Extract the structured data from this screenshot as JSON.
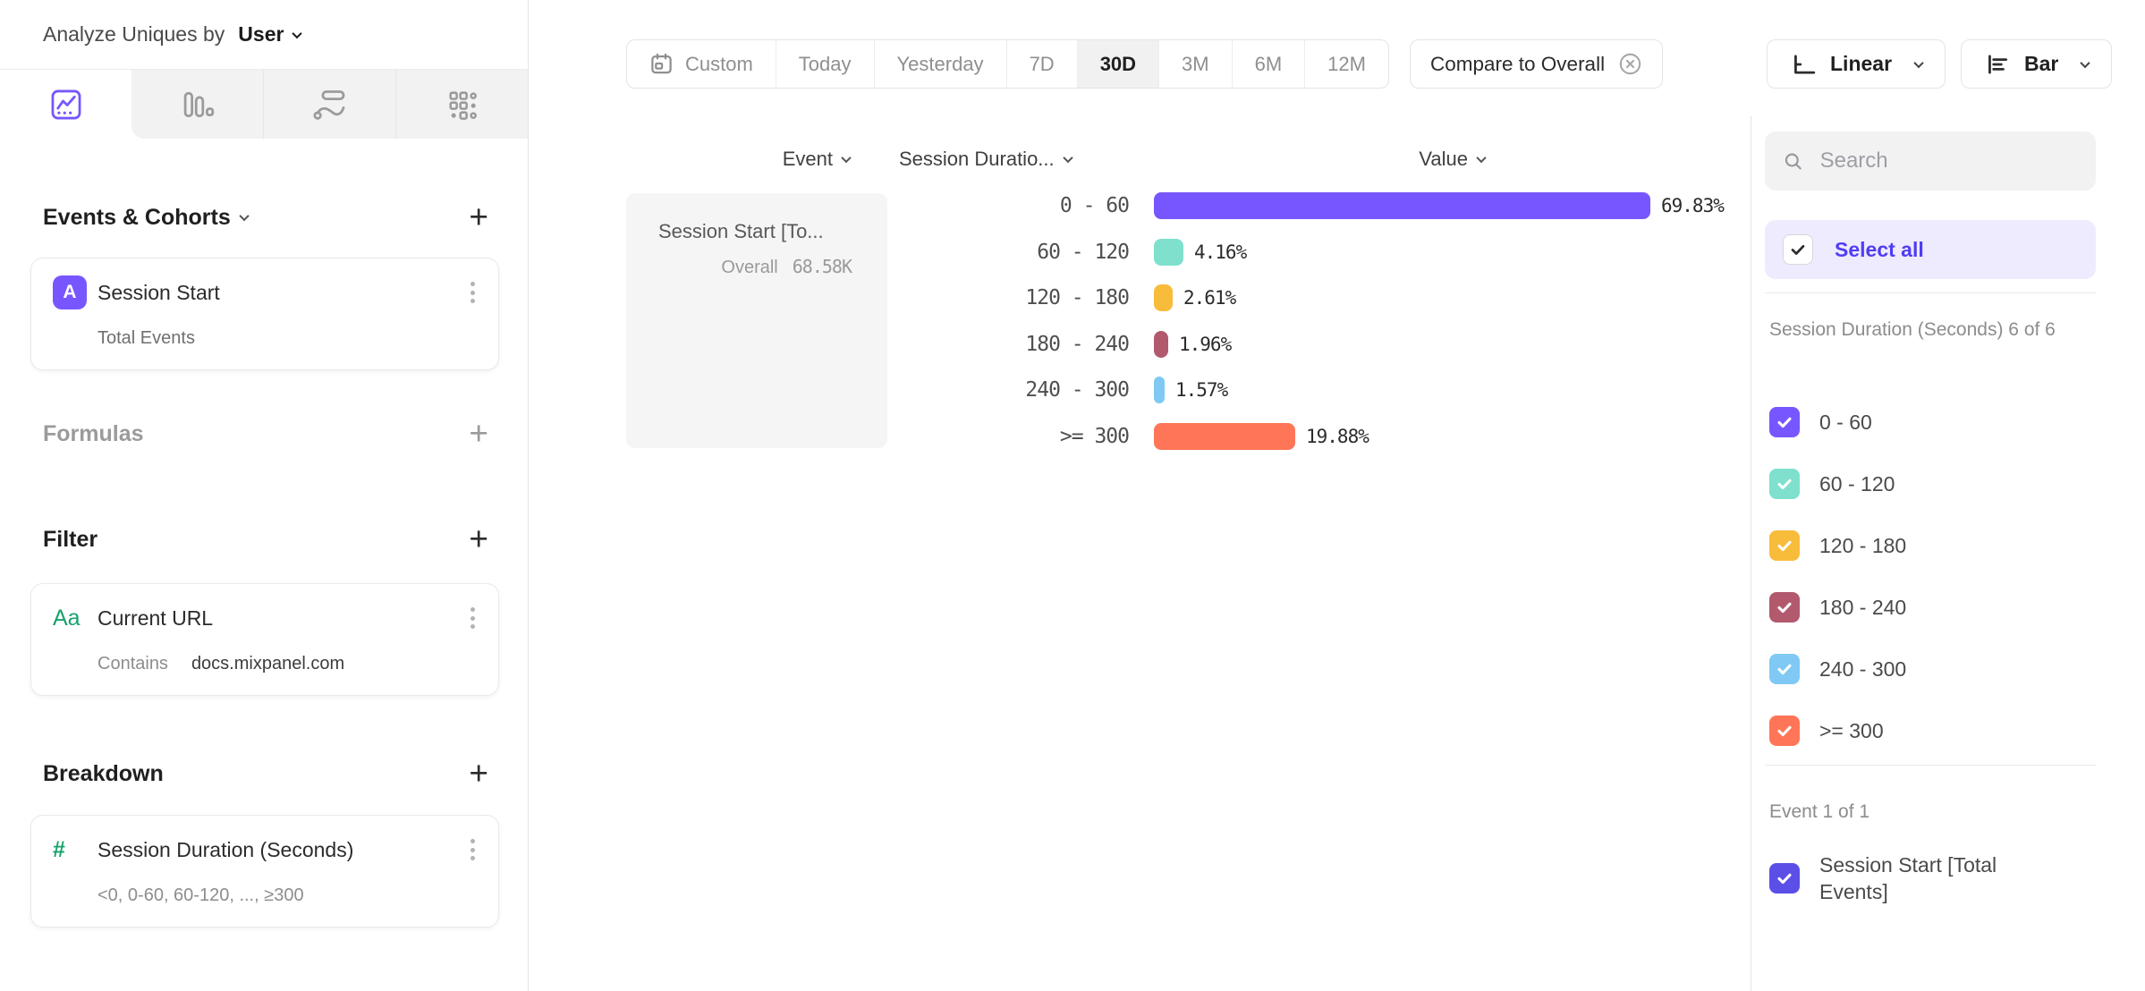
{
  "header": {
    "analyze_label": "Analyze Uniques by",
    "analyze_value": "User"
  },
  "left_tabs": [
    {
      "icon": "line-chart-icon",
      "selected": true
    },
    {
      "icon": "bar-chart-icon",
      "selected": false
    },
    {
      "icon": "flows-icon",
      "selected": false
    },
    {
      "icon": "grid-metrics-icon",
      "selected": false
    }
  ],
  "left_panel": {
    "events_header": "Events & Cohorts",
    "event_card": {
      "badge": "A",
      "title": "Session Start",
      "subtitle": "Total Events"
    },
    "formulas_header": "Formulas",
    "filter_header": "Filter",
    "filter_card": {
      "icon_label": "Aa",
      "title": "Current URL",
      "operator": "Contains",
      "value": "docs.mixpanel.com"
    },
    "breakdown_header": "Breakdown",
    "breakdown_card": {
      "icon_label": "#",
      "title": "Session Duration (Seconds)",
      "subtitle": "<0, 0-60, 60-120, ..., ≥300"
    }
  },
  "toolbar": {
    "date_ranges": [
      "Custom",
      "Today",
      "Yesterday",
      "7D",
      "30D",
      "3M",
      "6M",
      "12M"
    ],
    "selected_range": "30D",
    "compare_label": "Compare to Overall",
    "scale_label": "Linear",
    "chart_type_label": "Bar"
  },
  "table": {
    "col_event": "Event",
    "col_breakdown": "Session Duratio...",
    "col_value": "Value",
    "event_cell": {
      "title": "Session Start [To...",
      "overall_label": "Overall",
      "overall_value": "68.58K"
    }
  },
  "chart_data": {
    "type": "bar",
    "orientation": "horizontal",
    "series_name": "Session Start [Total Events]",
    "overall_label": "Overall",
    "overall_value": "68.58K",
    "categories": [
      "0 - 60",
      "60 - 120",
      "120 - 180",
      "180 - 240",
      "240 - 300",
      ">= 300"
    ],
    "values": [
      69.83,
      4.16,
      2.61,
      1.96,
      1.57,
      19.88
    ],
    "value_labels": [
      "69.83%",
      "4.16%",
      "2.61%",
      "1.96%",
      "1.57%",
      "19.88%"
    ],
    "colors": [
      "#7856FF",
      "#7EE0CD",
      "#F8BC3B",
      "#B2596E",
      "#7FC9F4",
      "#FF7557"
    ],
    "xlim": [
      0,
      70
    ],
    "grid": false,
    "legend_position": "right-panel-checkboxes"
  },
  "right_panel": {
    "search_placeholder": "Search",
    "select_all_label": "Select all",
    "groups": [
      {
        "header": "Session Duration (Seconds) 6 of 6",
        "items": [
          {
            "label": "0 - 60",
            "color": "#7856FF",
            "checked": true
          },
          {
            "label": "60 - 120",
            "color": "#7EE0CD",
            "checked": true
          },
          {
            "label": "120 - 180",
            "color": "#F8BC3B",
            "checked": true
          },
          {
            "label": "180 - 240",
            "color": "#B2596E",
            "checked": true
          },
          {
            "label": "240 - 300",
            "color": "#7FC9F4",
            "checked": true
          },
          {
            "label": ">= 300",
            "color": "#FF7557",
            "checked": true
          }
        ]
      },
      {
        "header": "Event 1 of 1",
        "items": [
          {
            "label": "Session Start [Total Events]",
            "color": "#5B4FE8",
            "checked": true
          }
        ]
      }
    ]
  },
  "colors": {
    "accent": "#7856FF",
    "select_all_text": "#4F3DF5",
    "select_all_bg": "#EFEBFE",
    "property_green": "#17A26C"
  }
}
